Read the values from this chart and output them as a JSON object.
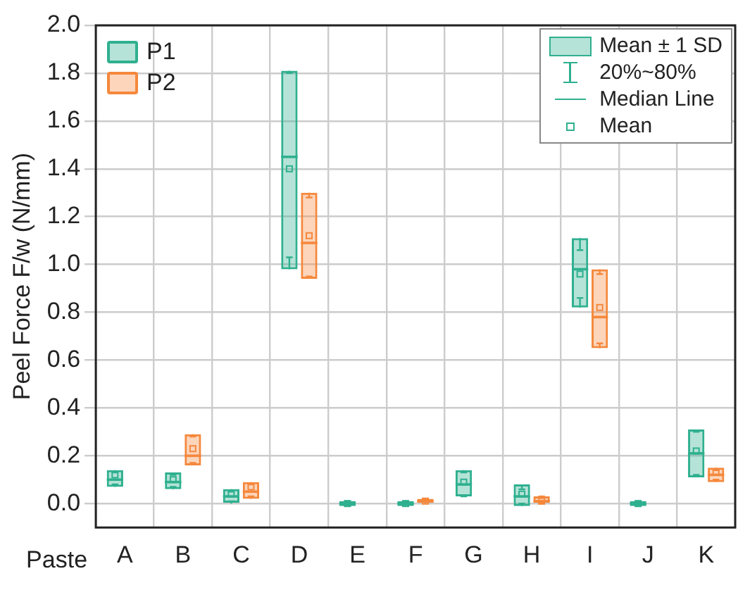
{
  "chart_data": {
    "type": "box",
    "ylabel": "Peel Force F/w (N/mm)",
    "xlabel": "Paste",
    "categories": [
      "A",
      "B",
      "C",
      "D",
      "E",
      "F",
      "G",
      "H",
      "I",
      "J",
      "K"
    ],
    "series": [
      {
        "name": "P1",
        "color": "#2fb08f",
        "boxes": [
          {
            "low": 0.08,
            "q1": 0.07,
            "median": 0.1,
            "q3": 0.14,
            "high": 0.13,
            "mean": 0.12
          },
          {
            "low": 0.07,
            "q1": 0.06,
            "median": 0.09,
            "q3": 0.13,
            "high": 0.12,
            "mean": 0.1
          },
          {
            "low": 0.01,
            "q1": 0.0,
            "median": 0.03,
            "q3": 0.06,
            "high": 0.05,
            "mean": 0.04
          },
          {
            "low": 1.03,
            "q1": 0.98,
            "median": 1.45,
            "q3": 1.81,
            "high": 1.8,
            "mean": 1.4
          },
          {
            "low": -0.01,
            "q1": -0.01,
            "median": 0,
            "q3": 0.01,
            "high": 0.01,
            "mean": 0
          },
          {
            "low": 0,
            "q1": -0.01,
            "median": 0,
            "q3": 0.01,
            "high": 0.01,
            "mean": 0
          },
          {
            "low": 0.03,
            "q1": 0.03,
            "median": 0.08,
            "q3": 0.14,
            "high": 0.13,
            "mean": 0.09
          },
          {
            "low": 0.0,
            "q1": -0.01,
            "median": 0.03,
            "q3": 0.08,
            "high": 0.06,
            "mean": 0.04
          },
          {
            "low": 0.86,
            "q1": 0.82,
            "median": 0.98,
            "q3": 1.11,
            "high": 1.06,
            "mean": 0.96
          },
          {
            "low": -0.01,
            "q1": -0.01,
            "median": 0,
            "q3": 0.01,
            "high": 0.01,
            "mean": 0
          },
          {
            "low": 0.12,
            "q1": 0.11,
            "median": 0.21,
            "q3": 0.31,
            "high": 0.3,
            "mean": 0.22
          }
        ]
      },
      {
        "name": "P2",
        "color": "#f5883c",
        "boxes": [
          null,
          {
            "low": 0.17,
            "q1": 0.16,
            "median": 0.2,
            "q3": 0.29,
            "high": 0.28,
            "mean": 0.23
          },
          {
            "low": 0.03,
            "q1": 0.02,
            "median": 0.05,
            "q3": 0.09,
            "high": 0.08,
            "mean": 0.07
          },
          {
            "low": 0.95,
            "q1": 0.94,
            "median": 1.09,
            "q3": 1.3,
            "high": 1.28,
            "mean": 1.12
          },
          null,
          {
            "low": 0.01,
            "q1": 0.0,
            "median": 0.01,
            "q3": 0.02,
            "high": 0.02,
            "mean": 0.01
          },
          null,
          {
            "low": 0.0,
            "q1": 0.0,
            "median": 0.01,
            "q3": 0.03,
            "high": 0.03,
            "mean": 0.01
          },
          {
            "low": 0.67,
            "q1": 0.65,
            "median": 0.78,
            "q3": 0.98,
            "high": 0.96,
            "mean": 0.82
          },
          null,
          {
            "low": 0.1,
            "q1": 0.09,
            "median": 0.12,
            "q3": 0.15,
            "high": 0.14,
            "mean": 0.13
          }
        ]
      }
    ],
    "ylim": [
      -0.1,
      2.0
    ],
    "yticks": [
      {
        "value": 0,
        "label": "0.0"
      },
      {
        "value": 0.2,
        "label": "0.2"
      },
      {
        "value": 0.4,
        "label": "0.4"
      },
      {
        "value": 0.6,
        "label": "0.6"
      },
      {
        "value": 0.8,
        "label": "0.8"
      },
      {
        "value": 1,
        "label": "1.0"
      },
      {
        "value": 1.2,
        "label": "1.2"
      },
      {
        "value": 1.4,
        "label": "1.4"
      },
      {
        "value": 1.6,
        "label": "1.6"
      },
      {
        "value": 1.8,
        "label": "1.8"
      },
      {
        "value": 2,
        "label": "2.0"
      }
    ],
    "grid": true,
    "legend": "top left",
    "annotations": [
      "Mean ± 1 SD",
      "20%~80%",
      "Median Line",
      "Mean"
    ]
  }
}
